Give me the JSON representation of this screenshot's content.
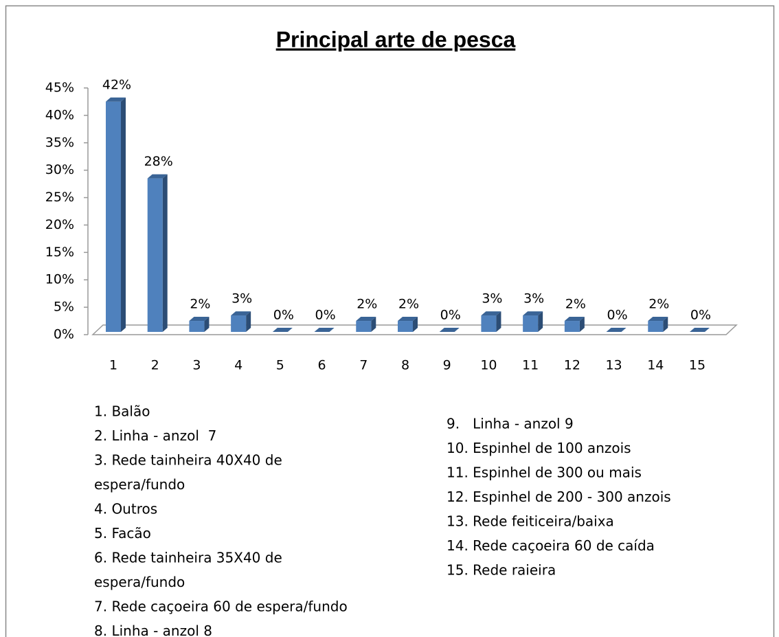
{
  "chart_data": {
    "type": "bar3d",
    "title": "Principal arte de pesca",
    "categories": [
      "1",
      "2",
      "3",
      "4",
      "5",
      "6",
      "7",
      "8",
      "9",
      "10",
      "11",
      "12",
      "13",
      "14",
      "15"
    ],
    "values": [
      42,
      28,
      2,
      3,
      0,
      0,
      2,
      2,
      0,
      3,
      3,
      2,
      0,
      2,
      0
    ],
    "value_labels": [
      "42%",
      "28%",
      "2%",
      "3%",
      "0%",
      "0%",
      "2%",
      "2%",
      "0%",
      "3%",
      "3%",
      "2%",
      "0%",
      "2%",
      "0%"
    ],
    "color": "#4f81bd",
    "ylim": [
      0,
      45
    ],
    "yticks": [
      {
        "value": 0,
        "label": "0%"
      },
      {
        "value": 5,
        "label": "5%"
      },
      {
        "value": 10,
        "label": "10%"
      },
      {
        "value": 15,
        "label": "15%"
      },
      {
        "value": 20,
        "label": "20%"
      },
      {
        "value": 25,
        "label": "25%"
      },
      {
        "value": 30,
        "label": "30%"
      },
      {
        "value": 35,
        "label": "35%"
      },
      {
        "value": 40,
        "label": "40%"
      },
      {
        "value": 45,
        "label": "45%"
      }
    ],
    "grid": false,
    "legend_left": [
      "1. Balão",
      "2. Linha - anzol  7",
      "3. Rede tainheira 40X40 de",
      "espera/fundo",
      "4. Outros",
      "5. Facão",
      "6. Rede tainheira 35X40 de",
      "espera/fundo",
      "7. Rede caçoeira 60 de espera/fundo",
      "8. Linha - anzol 8"
    ],
    "legend_right": [
      "9.   Linha - anzol 9",
      "10. Espinhel de 100 anzois",
      "11. Espinhel de 300 ou mais",
      "12. Espinhel de 200 - 300 anzois",
      "13. Rede feiticeira/baixa",
      "14. Rede caçoeira 60 de caída",
      "15. Rede raieira"
    ]
  }
}
